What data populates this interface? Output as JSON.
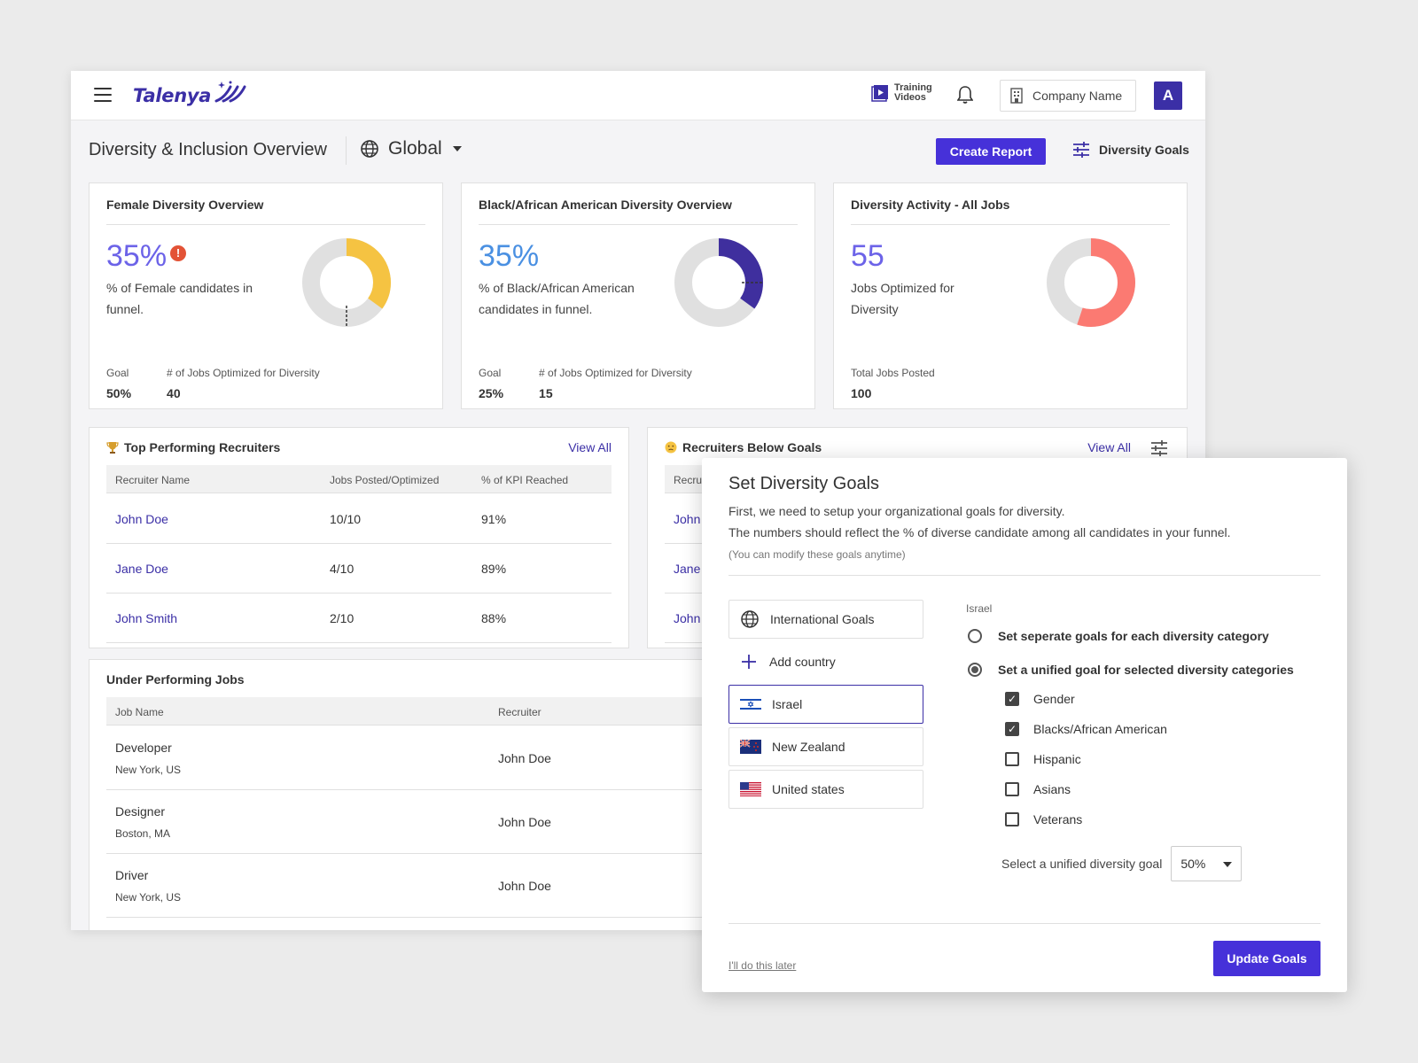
{
  "header": {
    "logo": "Talenya",
    "training_label": "Training Videos",
    "company_name": "Company Name",
    "avatar_initial": "A"
  },
  "titlebar": {
    "title": "Diversity & Inclusion Overview",
    "scope": "Global",
    "create_report": "Create Report",
    "diversity_goals": "Diversity Goals"
  },
  "cards": [
    {
      "title": "Female Diversity Overview",
      "value": "35%",
      "value_color": "#6c63e8",
      "warning": "!",
      "description": "% of Female candidates in funnel.",
      "fill_fraction": 0.35,
      "fill_color": "#f5c342",
      "goal_fraction": 0.5,
      "meta": [
        {
          "label": "Goal",
          "value": "50%"
        },
        {
          "label": "# of Jobs Optimized for Diversity",
          "value": "40"
        }
      ]
    },
    {
      "title": "Black/African American Diversity Overview",
      "value": "35%",
      "value_color": "#4a90e2",
      "description": "% of Black/African American candidates in funnel.",
      "fill_fraction": 0.35,
      "fill_color": "#3f2f9e",
      "goal_fraction": 0.25,
      "meta": [
        {
          "label": "Goal",
          "value": "25%"
        },
        {
          "label": "# of Jobs Optimized for Diversity",
          "value": "15"
        }
      ]
    },
    {
      "title": "Diversity Activity - All Jobs",
      "value": "55",
      "value_color": "#6c63e8",
      "description": "Jobs Optimized for Diversity",
      "fill_fraction": 0.55,
      "fill_color": "#fb7a72",
      "meta": [
        {
          "label": "Total Jobs Posted",
          "value": "100"
        }
      ]
    }
  ],
  "top_recruiters": {
    "title": "Top Performing Recruiters",
    "view_all": "View All",
    "columns": [
      "Recruiter Name",
      "Jobs Posted/Optimized",
      "% of KPI Reached"
    ],
    "rows": [
      {
        "name": "John Doe",
        "jobs": "10/10",
        "kpi": "91%"
      },
      {
        "name": "Jane Doe",
        "jobs": "4/10",
        "kpi": "89%"
      },
      {
        "name": "John Smith",
        "jobs": "2/10",
        "kpi": "88%"
      }
    ]
  },
  "below_goals": {
    "title": "Recruiters Below Goals",
    "view_all": "View All",
    "column": "Recru",
    "rows": [
      "John",
      "Jane",
      "John"
    ]
  },
  "under_jobs": {
    "title": "Under Performing Jobs",
    "columns": [
      "Job Name",
      "Recruiter"
    ],
    "rows": [
      {
        "name": "Developer",
        "location": "New York, US",
        "recruiter": "John Doe"
      },
      {
        "name": "Designer",
        "location": "Boston, MA",
        "recruiter": "John Doe"
      },
      {
        "name": "Driver",
        "location": "New York, US",
        "recruiter": "John Doe"
      }
    ]
  },
  "modal": {
    "title": "Set Diversity Goals",
    "line1": "First, we need to setup your organizational goals for diversity.",
    "line2": "The numbers should reflect the % of diverse candidate among all candidates in your funnel.",
    "note": "(You can modify these goals anytime)",
    "international": "International Goals",
    "add_country": "Add country",
    "countries": [
      "Israel",
      "New Zealand",
      "United states"
    ],
    "selected_country": "Israel",
    "option_separate": "Set seperate goals for each diversity category",
    "option_unified": "Set a unified goal for selected diversity categories",
    "categories": [
      {
        "label": "Gender",
        "checked": true
      },
      {
        "label": "Blacks/African American",
        "checked": true
      },
      {
        "label": "Hispanic",
        "checked": false
      },
      {
        "label": "Asians",
        "checked": false
      },
      {
        "label": "Veterans",
        "checked": false
      }
    ],
    "unified_label": "Select a unified diversity goal",
    "unified_value": "50%",
    "later": "I'll do this later",
    "update": "Update Goals"
  }
}
